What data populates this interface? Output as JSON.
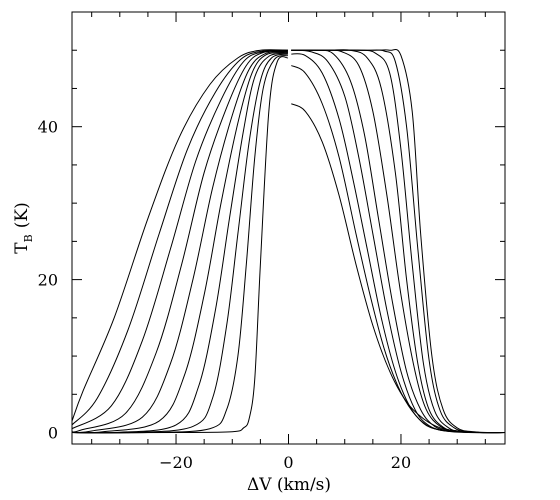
{
  "chart_data": {
    "type": "line",
    "title": "",
    "xlabel": "ΔV (km/s)",
    "ylabel_main": "T",
    "ylabel_sub": "B",
    "ylabel_unit": "(K)",
    "xlim": [
      -38.5,
      38.5
    ],
    "ylim": [
      -1.5,
      55.0
    ],
    "x_ticks": [
      -20,
      0,
      20
    ],
    "y_ticks": [
      0,
      20,
      40
    ],
    "x_minor_step": 5,
    "y_minor_step": 5,
    "grid": false,
    "line_color": "#000000",
    "series": [
      {
        "x": [
          -38.5,
          -20.0,
          -10.0,
          -8.0,
          -7.0,
          -6.0,
          -5.0,
          -3.5,
          -2.0,
          -0.1
        ],
        "y": [
          0.0,
          0.0,
          0.1,
          0.6,
          1.8,
          7.0,
          22.0,
          42.0,
          48.5,
          49.0
        ]
      },
      {
        "x": [
          -38.5,
          -25.0,
          -14.0,
          -11.0,
          -9.0,
          -7.5,
          -6.0,
          -4.5,
          -2.5,
          -0.1
        ],
        "y": [
          0.0,
          0.0,
          0.5,
          3.0,
          10.0,
          22.0,
          36.0,
          45.0,
          48.8,
          49.3
        ]
      },
      {
        "x": [
          -38.5,
          -28.0,
          -17.0,
          -13.5,
          -11.0,
          -9.0,
          -7.0,
          -5.0,
          -3.0,
          -0.1
        ],
        "y": [
          0.0,
          0.0,
          0.8,
          4.5,
          14.0,
          26.0,
          38.0,
          46.0,
          49.0,
          49.5
        ]
      },
      {
        "x": [
          -38.5,
          -31.0,
          -20.0,
          -16.0,
          -13.0,
          -10.5,
          -8.0,
          -6.0,
          -3.5,
          -0.1
        ],
        "y": [
          0.0,
          0.0,
          1.0,
          6.0,
          16.0,
          28.0,
          39.5,
          46.5,
          49.2,
          49.6
        ]
      },
      {
        "x": [
          -38.5,
          -33.0,
          -23.0,
          -18.5,
          -15.0,
          -12.0,
          -9.0,
          -6.5,
          -4.0,
          -0.1
        ],
        "y": [
          0.0,
          0.1,
          1.5,
          7.5,
          18.0,
          30.0,
          40.5,
          47.0,
          49.4,
          49.7
        ]
      },
      {
        "x": [
          -38.5,
          -35.0,
          -26.0,
          -21.0,
          -17.0,
          -13.5,
          -10.0,
          -7.0,
          -4.0,
          -0.1
        ],
        "y": [
          0.0,
          0.2,
          2.0,
          9.0,
          20.0,
          32.0,
          41.5,
          47.5,
          49.6,
          49.8
        ]
      },
      {
        "x": [
          -38.5,
          -37.0,
          -29.0,
          -23.5,
          -19.0,
          -15.0,
          -11.0,
          -7.5,
          -4.5,
          -0.1
        ],
        "y": [
          0.1,
          0.3,
          2.5,
          10.5,
          22.0,
          34.0,
          42.5,
          48.0,
          49.7,
          49.9
        ]
      },
      {
        "x": [
          -38.5,
          -31.5,
          -26.0,
          -21.0,
          -16.5,
          -12.0,
          -8.0,
          -4.5,
          -0.1
        ],
        "y": [
          0.5,
          3.5,
          12.0,
          24.0,
          35.5,
          43.5,
          48.5,
          49.8,
          50.0
        ]
      },
      {
        "x": [
          -38.5,
          -34.0,
          -28.5,
          -23.0,
          -18.0,
          -13.0,
          -8.5,
          -4.5,
          -0.1
        ],
        "y": [
          1.0,
          4.5,
          13.5,
          26.0,
          37.0,
          44.5,
          48.8,
          49.9,
          50.0
        ]
      },
      {
        "x": [
          -38.5,
          -36.5,
          -31.0,
          -25.0,
          -19.5,
          -14.0,
          -9.0,
          -5.0,
          -0.1
        ],
        "y": [
          1.5,
          5.5,
          15.0,
          28.0,
          38.5,
          45.5,
          49.0,
          50.0,
          50.0
        ]
      },
      {
        "x": [
          0.5,
          3.0,
          6.0,
          9.0,
          12.0,
          15.0,
          18.0,
          21.0,
          24.0,
          27.0,
          30.0,
          34.0,
          38.5
        ],
        "y": [
          43.0,
          42.0,
          38.0,
          31.0,
          22.0,
          14.0,
          8.0,
          4.0,
          1.8,
          0.6,
          0.2,
          0.0,
          0.0
        ]
      },
      {
        "x": [
          0.5,
          3.0,
          6.0,
          9.0,
          12.0,
          14.5,
          17.0,
          19.5,
          22.0,
          24.5,
          27.0,
          30.0,
          34.0,
          38.5
        ],
        "y": [
          48.0,
          47.0,
          43.0,
          36.0,
          26.0,
          18.0,
          11.0,
          6.0,
          2.8,
          1.0,
          0.3,
          0.1,
          0.0,
          0.0
        ]
      },
      {
        "x": [
          0.5,
          3.0,
          6.0,
          9.0,
          11.5,
          14.0,
          16.5,
          19.0,
          21.5,
          24.0,
          26.5,
          30.0,
          34.0,
          38.5
        ],
        "y": [
          49.5,
          49.3,
          47.0,
          41.0,
          33.0,
          24.0,
          15.0,
          8.0,
          3.5,
          1.2,
          0.4,
          0.1,
          0.0,
          0.0
        ]
      },
      {
        "x": [
          0.5,
          4.0,
          7.0,
          10.0,
          12.5,
          15.0,
          17.5,
          20.0,
          22.5,
          25.0,
          28.0,
          32.0,
          38.5
        ],
        "y": [
          50.0,
          49.8,
          48.5,
          44.0,
          36.0,
          26.0,
          16.0,
          8.0,
          3.0,
          0.9,
          0.2,
          0.0,
          0.0
        ]
      },
      {
        "x": [
          0.5,
          5.0,
          8.0,
          11.0,
          13.5,
          16.0,
          18.5,
          21.0,
          23.5,
          26.0,
          29.0,
          33.0,
          38.5
        ],
        "y": [
          50.0,
          50.0,
          49.5,
          46.0,
          39.0,
          28.0,
          17.0,
          8.0,
          3.0,
          0.8,
          0.2,
          0.0,
          0.0
        ]
      },
      {
        "x": [
          0.5,
          6.0,
          9.5,
          12.5,
          15.0,
          17.5,
          20.0,
          22.5,
          24.5,
          27.0,
          30.0,
          34.0,
          38.5
        ],
        "y": [
          50.0,
          50.0,
          49.8,
          48.0,
          42.0,
          31.0,
          18.0,
          8.0,
          3.0,
          0.8,
          0.2,
          0.0,
          0.0
        ]
      },
      {
        "x": [
          0.5,
          7.0,
          11.0,
          14.0,
          16.5,
          19.0,
          21.0,
          23.0,
          25.0,
          27.5,
          30.0,
          34.0,
          38.5
        ],
        "y": [
          50.0,
          50.0,
          50.0,
          49.0,
          45.0,
          34.0,
          20.0,
          9.0,
          3.0,
          0.7,
          0.2,
          0.0,
          0.0
        ]
      },
      {
        "x": [
          0.5,
          8.0,
          12.5,
          15.5,
          18.0,
          20.0,
          22.0,
          24.0,
          26.0,
          28.5,
          31.0,
          35.0,
          38.5
        ],
        "y": [
          50.0,
          50.0,
          50.0,
          49.6,
          47.0,
          37.0,
          22.0,
          9.0,
          2.8,
          0.6,
          0.1,
          0.0,
          0.0
        ]
      },
      {
        "x": [
          0.5,
          9.0,
          14.0,
          17.0,
          19.0,
          21.0,
          23.0,
          25.0,
          27.0,
          29.5,
          32.0,
          35.0,
          38.5
        ],
        "y": [
          50.0,
          50.0,
          50.0,
          49.9,
          48.5,
          40.0,
          24.0,
          9.5,
          2.8,
          0.6,
          0.1,
          0.0,
          0.0
        ]
      },
      {
        "x": [
          0.5,
          10.0,
          15.5,
          18.0,
          20.0,
          22.0,
          23.5,
          25.5,
          27.5,
          30.0,
          33.0,
          36.0,
          38.5
        ],
        "y": [
          50.0,
          50.0,
          50.0,
          50.0,
          49.3,
          42.0,
          26.0,
          10.0,
          3.0,
          0.6,
          0.1,
          0.0,
          0.0
        ]
      }
    ]
  }
}
